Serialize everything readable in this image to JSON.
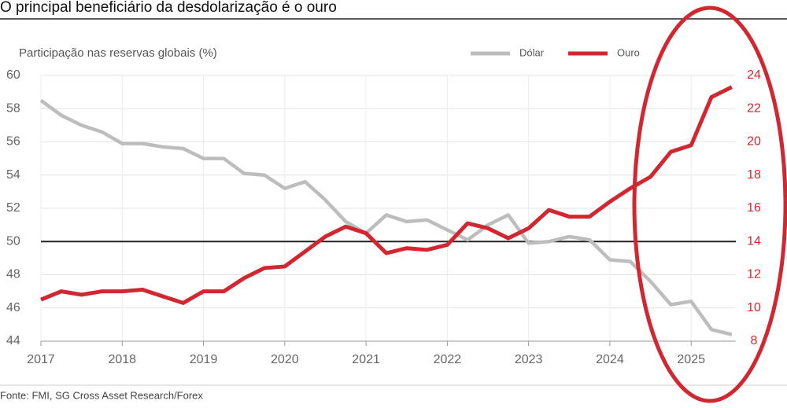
{
  "chart_data": {
    "type": "line",
    "title": "O principal beneficiário da desdolarização é o ouro",
    "y_label": "Participação nas reservas globais (%)",
    "source": "Fonte: FMI, SG Cross Asset Research/Forex",
    "x": [
      2017,
      2017.25,
      2017.5,
      2017.75,
      2018,
      2018.25,
      2018.5,
      2018.75,
      2019,
      2019.25,
      2019.5,
      2019.75,
      2020,
      2020.25,
      2020.5,
      2020.75,
      2021,
      2021.25,
      2021.5,
      2021.75,
      2022,
      2022.25,
      2022.5,
      2022.75,
      2023,
      2023.25,
      2023.5,
      2023.75,
      2024,
      2024.25,
      2024.5,
      2024.75,
      2025,
      2025.25,
      2025.5
    ],
    "series": [
      {
        "name": "Dólar",
        "color": "#bdbdbd",
        "values": [
          58.5,
          57.6,
          57.0,
          56.6,
          55.9,
          55.9,
          55.7,
          55.6,
          55.0,
          55.0,
          54.1,
          54.0,
          53.2,
          53.6,
          52.5,
          51.2,
          50.5,
          51.6,
          51.2,
          51.3,
          50.7,
          50.1,
          51.0,
          51.6,
          49.9,
          50.0,
          50.3,
          50.1,
          48.9,
          48.8,
          47.6,
          46.2,
          46.4,
          44.7,
          44.4
        ]
      },
      {
        "name": "Ouro",
        "color": "#d22630",
        "axis": "y2",
        "values": [
          10.5,
          11.0,
          10.8,
          11.0,
          11.0,
          11.1,
          10.7,
          10.3,
          11.0,
          11.0,
          11.8,
          12.4,
          12.5,
          13.4,
          14.3,
          14.9,
          14.5,
          13.3,
          13.6,
          13.5,
          13.8,
          15.1,
          14.8,
          14.2,
          14.8,
          15.9,
          15.5,
          15.5,
          16.4,
          17.2,
          17.9,
          19.4,
          19.8,
          22.7,
          23.3
        ]
      }
    ],
    "xlim": [
      2017,
      2025.55
    ],
    "xticks": [
      2017,
      2018,
      2019,
      2020,
      2021,
      2022,
      2023,
      2024,
      2025
    ],
    "ylim": [
      44,
      60
    ],
    "yticks": [
      44,
      46,
      48,
      50,
      52,
      54,
      56,
      58,
      60
    ],
    "y2lim": [
      8,
      24
    ],
    "y2ticks": [
      8,
      10,
      12,
      14,
      16,
      18,
      20,
      22,
      24
    ],
    "reference_line": 50,
    "grid": true,
    "legend": "top"
  }
}
